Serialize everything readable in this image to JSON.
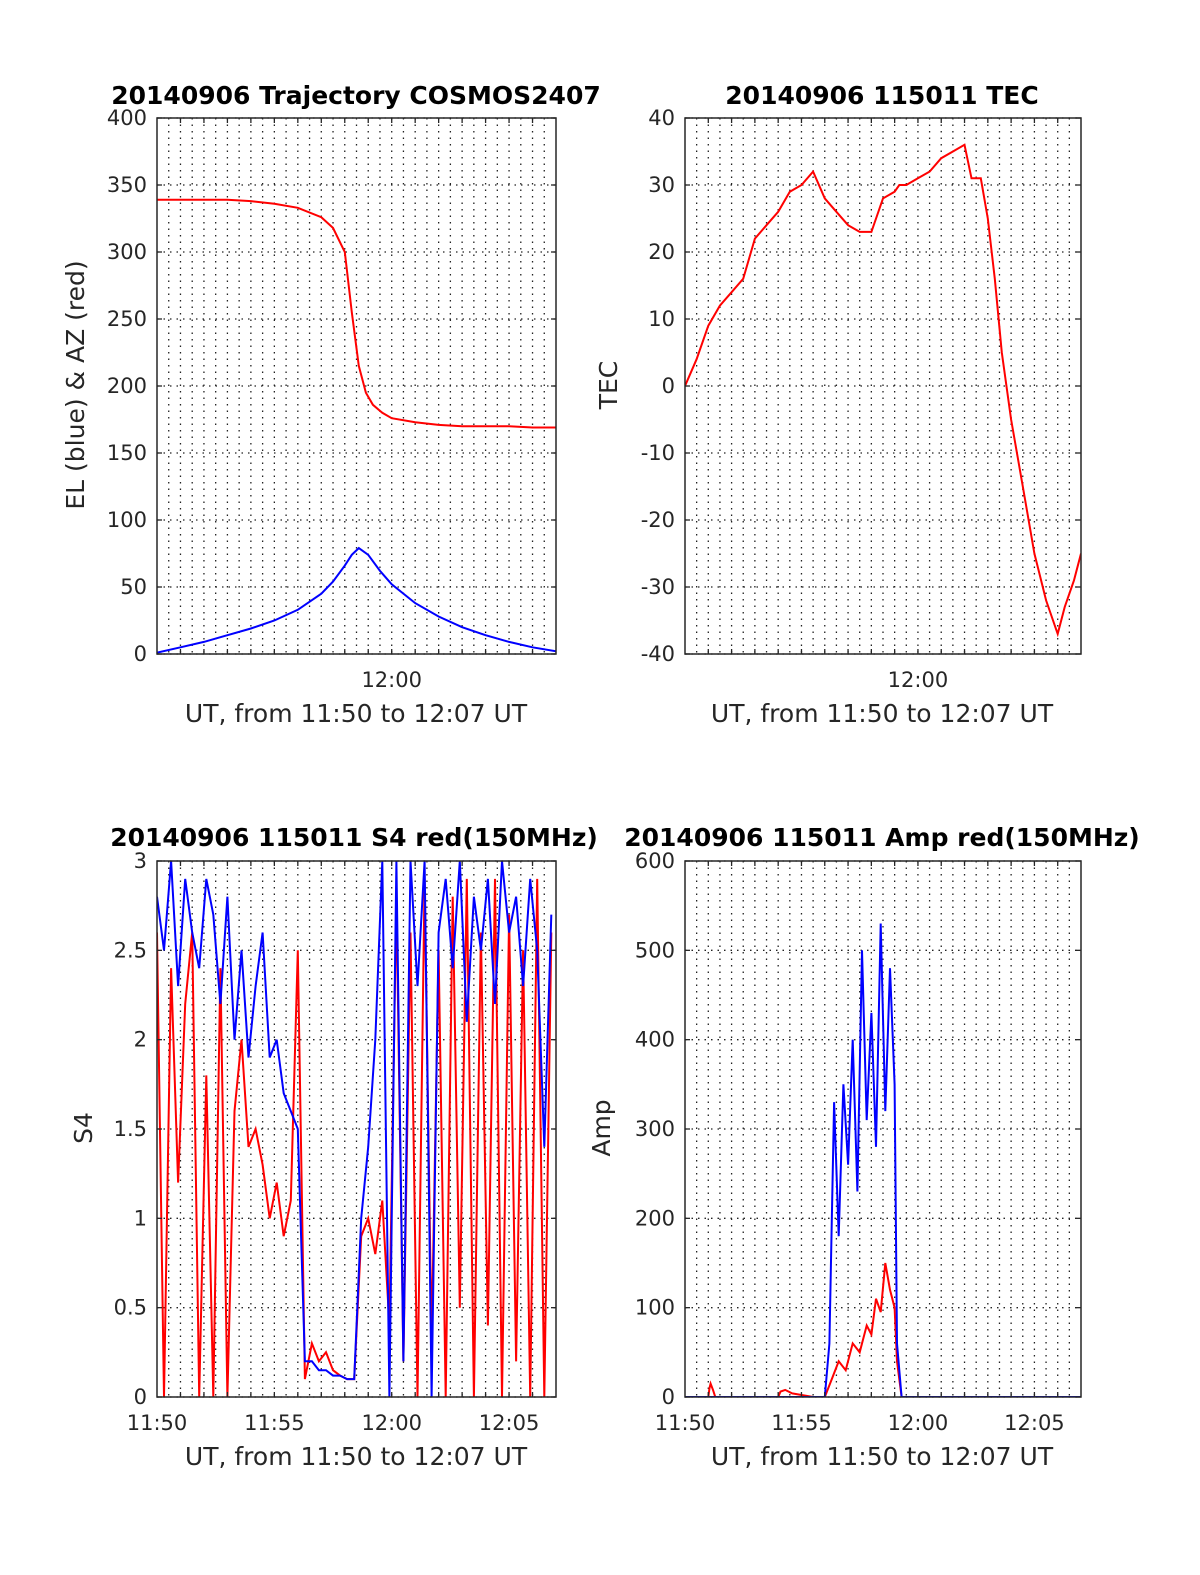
{
  "chart_data": [
    {
      "type": "line",
      "title": "20140906 Trajectory COSMOS2407",
      "xlabel": "UT, from 11:50 to 12:07 UT",
      "ylabel": "EL (blue) & AZ (red)",
      "xlim": [
        0,
        17
      ],
      "ylim": [
        0,
        400
      ],
      "yticks": [
        0,
        50,
        100,
        150,
        200,
        250,
        300,
        350,
        400
      ],
      "xticks": [
        {
          "x": 10,
          "label": "12:00"
        }
      ],
      "grid": true,
      "series": [
        {
          "color": "#ff0000",
          "x": [
            0,
            1,
            2,
            3,
            4,
            5,
            6,
            7,
            7.5,
            8,
            8.3,
            8.6,
            8.9,
            9.2,
            9.6,
            10,
            11,
            12,
            13,
            14,
            15,
            16,
            17
          ],
          "y": [
            339,
            339,
            339,
            339,
            338,
            336,
            333,
            326,
            318,
            300,
            255,
            215,
            195,
            186,
            180,
            176,
            173,
            171,
            170,
            170,
            170,
            169,
            169
          ]
        },
        {
          "color": "#0000ff",
          "x": [
            0,
            1,
            2,
            3,
            4,
            5,
            6,
            7,
            7.5,
            8,
            8.3,
            8.6,
            9,
            9.5,
            10,
            11,
            12,
            13,
            14,
            15,
            16,
            17
          ],
          "y": [
            1,
            5,
            9,
            14,
            19,
            25,
            33,
            45,
            54,
            66,
            74,
            79,
            74,
            62,
            52,
            38,
            28,
            20,
            14,
            9,
            5,
            2
          ]
        }
      ]
    },
    {
      "type": "line",
      "title": "20140906 115011 TEC",
      "xlabel": "UT, from 11:50 to 12:07 UT",
      "ylabel": "TEC",
      "xlim": [
        0,
        17
      ],
      "ylim": [
        -40,
        40
      ],
      "yticks": [
        -40,
        -30,
        -20,
        -10,
        0,
        10,
        20,
        30,
        40
      ],
      "xticks": [
        {
          "x": 10,
          "label": "12:00"
        }
      ],
      "grid": true,
      "series": [
        {
          "color": "#ff0000",
          "x": [
            0,
            0.5,
            1,
            1.5,
            2,
            2.5,
            3,
            3.5,
            4,
            4.5,
            5,
            5.5,
            6,
            6.5,
            7,
            7.5,
            8,
            8.5,
            9,
            9.2,
            9.5,
            10,
            10.5,
            11,
            11.5,
            12,
            12.3,
            12.7,
            13,
            13.3,
            13.6,
            14,
            14.5,
            15,
            15.5,
            16,
            16.3,
            16.7,
            17
          ],
          "y": [
            0,
            4,
            9,
            12,
            14,
            16,
            22,
            24,
            26,
            29,
            30,
            32,
            28,
            26,
            24,
            23,
            23,
            28,
            29,
            30,
            30,
            31,
            32,
            34,
            35,
            36,
            31,
            31,
            25,
            16,
            5,
            -5,
            -15,
            -25,
            -32,
            -37,
            -33,
            -29,
            -25
          ]
        }
      ]
    },
    {
      "type": "line",
      "title": "20140906 115011 S4 red(150MHz)",
      "xlabel": "UT, from 11:50 to 12:07 UT",
      "ylabel": "S4",
      "xlim": [
        0,
        17
      ],
      "ylim": [
        0,
        3
      ],
      "yticks": [
        0,
        0.5,
        1,
        1.5,
        2,
        2.5,
        3
      ],
      "xticks": [
        {
          "x": 0,
          "label": "11:50"
        },
        {
          "x": 5,
          "label": "11:55"
        },
        {
          "x": 10,
          "label": "12:00"
        },
        {
          "x": 15,
          "label": "12:05"
        }
      ],
      "grid": true,
      "series": [
        {
          "color": "#ff0000",
          "x": [
            0,
            0.3,
            0.6,
            0.9,
            1.2,
            1.5,
            1.8,
            2.1,
            2.4,
            2.7,
            3,
            3.3,
            3.6,
            3.9,
            4.2,
            4.5,
            4.8,
            5.1,
            5.4,
            5.7,
            6,
            6.3,
            6.6,
            6.9,
            7.2,
            7.5,
            7.8,
            8.1,
            8.4,
            8.7,
            9,
            9.3,
            9.6,
            9.9,
            10.2,
            10.5,
            10.8,
            11.1,
            11.4,
            11.7,
            12,
            12.3,
            12.6,
            12.9,
            13.2,
            13.5,
            13.8,
            14.1,
            14.4,
            14.7,
            15,
            15.3,
            15.6,
            15.9,
            16.2,
            16.5,
            16.8
          ],
          "y": [
            2.6,
            0,
            2.4,
            1.2,
            2.2,
            2.6,
            0,
            1.8,
            0,
            2.4,
            0,
            1.6,
            2,
            1.4,
            1.5,
            1.3,
            1,
            1.2,
            0.9,
            1.1,
            2.5,
            0.1,
            0.3,
            0.2,
            0.25,
            0.15,
            0.12,
            0.1,
            0.1,
            0.9,
            1,
            0.8,
            1.1,
            0.4,
            2.8,
            0.2,
            2.6,
            0,
            2.9,
            0.3,
            2.5,
            0,
            2.8,
            0.5,
            2.9,
            0,
            2.6,
            0.4,
            2.9,
            0,
            2.7,
            0.2,
            2.5,
            0,
            2.9,
            0,
            2.6
          ]
        },
        {
          "color": "#0000ff",
          "x": [
            0,
            0.3,
            0.6,
            0.9,
            1.2,
            1.5,
            1.8,
            2.1,
            2.4,
            2.7,
            3,
            3.3,
            3.6,
            3.9,
            4.2,
            4.5,
            4.8,
            5.1,
            5.4,
            5.7,
            6,
            6.3,
            6.6,
            6.9,
            7.2,
            7.5,
            7.8,
            8.1,
            8.4,
            8.7,
            9,
            9.3,
            9.6,
            9.9,
            10.2,
            10.5,
            10.8,
            11.1,
            11.4,
            11.7,
            12,
            12.3,
            12.6,
            12.9,
            13.2,
            13.5,
            13.8,
            14.1,
            14.4,
            14.7,
            15,
            15.3,
            15.6,
            15.9,
            16.2,
            16.5,
            16.8
          ],
          "y": [
            2.8,
            2.5,
            3,
            2.3,
            2.9,
            2.6,
            2.4,
            2.9,
            2.7,
            2.2,
            2.8,
            2,
            2.5,
            1.9,
            2.3,
            2.6,
            1.9,
            2,
            1.7,
            1.6,
            1.5,
            0.2,
            0.2,
            0.15,
            0.15,
            0.12,
            0.12,
            0.1,
            0.1,
            1,
            1.4,
            2,
            3,
            0,
            3,
            0.2,
            3,
            2.3,
            3,
            0,
            2.6,
            2.9,
            2.4,
            3,
            2.1,
            2.8,
            2.5,
            2.9,
            2.2,
            3,
            2.6,
            2.8,
            2.3,
            2.9,
            2.5,
            1.4,
            2.7
          ]
        }
      ]
    },
    {
      "type": "line",
      "title": "20140906 115011 Amp red(150MHz)",
      "xlabel": "UT, from 11:50 to 12:07 UT",
      "ylabel": "Amp",
      "xlim": [
        0,
        17
      ],
      "ylim": [
        0,
        600
      ],
      "yticks": [
        0,
        100,
        200,
        300,
        400,
        500,
        600
      ],
      "xticks": [
        {
          "x": 0,
          "label": "11:50"
        },
        {
          "x": 5,
          "label": "11:55"
        },
        {
          "x": 10,
          "label": "12:00"
        },
        {
          "x": 15,
          "label": "12:05"
        }
      ],
      "grid": true,
      "series": [
        {
          "color": "#ff0000",
          "x": [
            0,
            1,
            1.05,
            1.1,
            1.2,
            1.3,
            2,
            4,
            4.1,
            4.3,
            4.6,
            5.5,
            6,
            6.3,
            6.6,
            6.9,
            7.2,
            7.5,
            7.8,
            8,
            8.2,
            8.4,
            8.6,
            8.8,
            9,
            9.1,
            9.3,
            10,
            12,
            14,
            17
          ],
          "y": [
            0,
            0,
            10,
            15,
            8,
            0,
            0,
            0,
            6,
            8,
            4,
            0,
            0,
            20,
            40,
            30,
            60,
            50,
            80,
            70,
            110,
            95,
            150,
            120,
            100,
            40,
            0,
            0,
            0,
            0,
            0
          ]
        },
        {
          "color": "#0000ff",
          "x": [
            0,
            2,
            4,
            5.5,
            6,
            6.2,
            6.4,
            6.6,
            6.8,
            7,
            7.2,
            7.4,
            7.6,
            7.8,
            8,
            8.2,
            8.4,
            8.6,
            8.8,
            9,
            9.1,
            9.3,
            10,
            12,
            14,
            16,
            17
          ],
          "y": [
            0,
            0,
            0,
            0,
            0,
            60,
            330,
            180,
            350,
            260,
            400,
            230,
            500,
            310,
            430,
            280,
            530,
            320,
            480,
            350,
            60,
            0,
            0,
            0,
            0,
            0,
            0
          ]
        }
      ]
    }
  ]
}
